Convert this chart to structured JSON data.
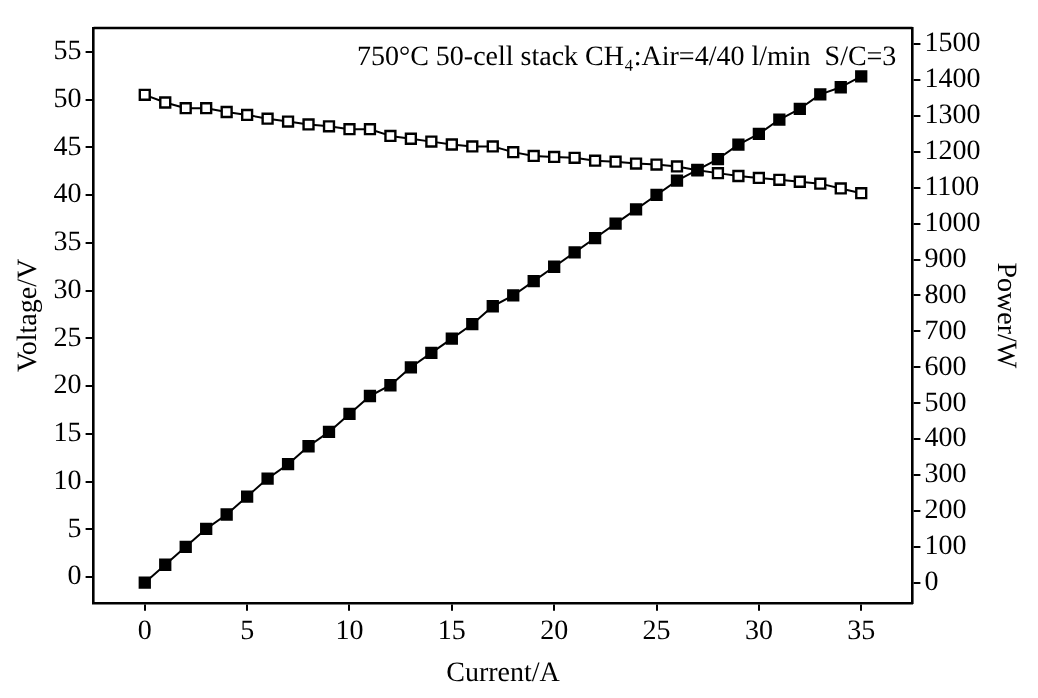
{
  "chart_data": {
    "type": "line",
    "xlabel": "Current/A",
    "ylabel": "Voltage/V",
    "y2label": "Power/W",
    "annotations": [
      "750°C 50-cell stack CH₄:Air=4/40 l/min  S/C=3"
    ],
    "x": [
      0,
      1,
      2,
      3,
      4,
      5,
      6,
      7,
      8,
      9,
      10,
      11,
      12,
      13,
      14,
      15,
      16,
      17,
      18,
      19,
      20,
      21,
      22,
      23,
      24,
      25,
      26,
      27,
      28,
      29,
      30,
      31,
      32,
      33,
      34,
      35
    ],
    "series": [
      {
        "color": "#000000",
        "values": [
          50.5,
          49.7,
          49.1,
          49.1,
          48.7,
          48.4,
          48.0,
          47.7,
          47.4,
          47.2,
          46.9,
          46.9,
          46.2,
          45.9,
          45.6,
          45.3,
          45.1,
          45.1,
          44.5,
          44.1,
          44.0,
          43.9,
          43.6,
          43.5,
          43.3,
          43.2,
          43.0,
          42.6,
          42.3,
          42.0,
          41.8,
          41.6,
          41.4,
          41.2,
          40.7,
          40.2
        ]
      },
      {
        "color": "#000000",
        "axis": "y2",
        "values": [
          0,
          50,
          100,
          150,
          190,
          240,
          290,
          330,
          380,
          420,
          470,
          520,
          550,
          600,
          640,
          680,
          720,
          770,
          800,
          840,
          880,
          920,
          960,
          1000,
          1040,
          1080,
          1120,
          1150,
          1180,
          1220,
          1250,
          1290,
          1320,
          1360,
          1380,
          1410
        ]
      }
    ],
    "xlim": [
      -2.5,
      37.5
    ],
    "xticks": [
      0,
      5,
      10,
      15,
      20,
      25,
      30,
      35
    ],
    "ylim": [
      -2.7,
      57.5
    ],
    "yticks": [
      0,
      5,
      10,
      15,
      20,
      25,
      30,
      35,
      40,
      45,
      50,
      55
    ],
    "y2lim": [
      -56,
      1545
    ],
    "y2ticks": [
      0,
      100,
      200,
      300,
      400,
      500,
      600,
      700,
      800,
      900,
      1000,
      1100,
      1200,
      1300,
      1400,
      1500
    ],
    "marker": "square",
    "line_style": "solid",
    "grid": false,
    "legend": false
  }
}
